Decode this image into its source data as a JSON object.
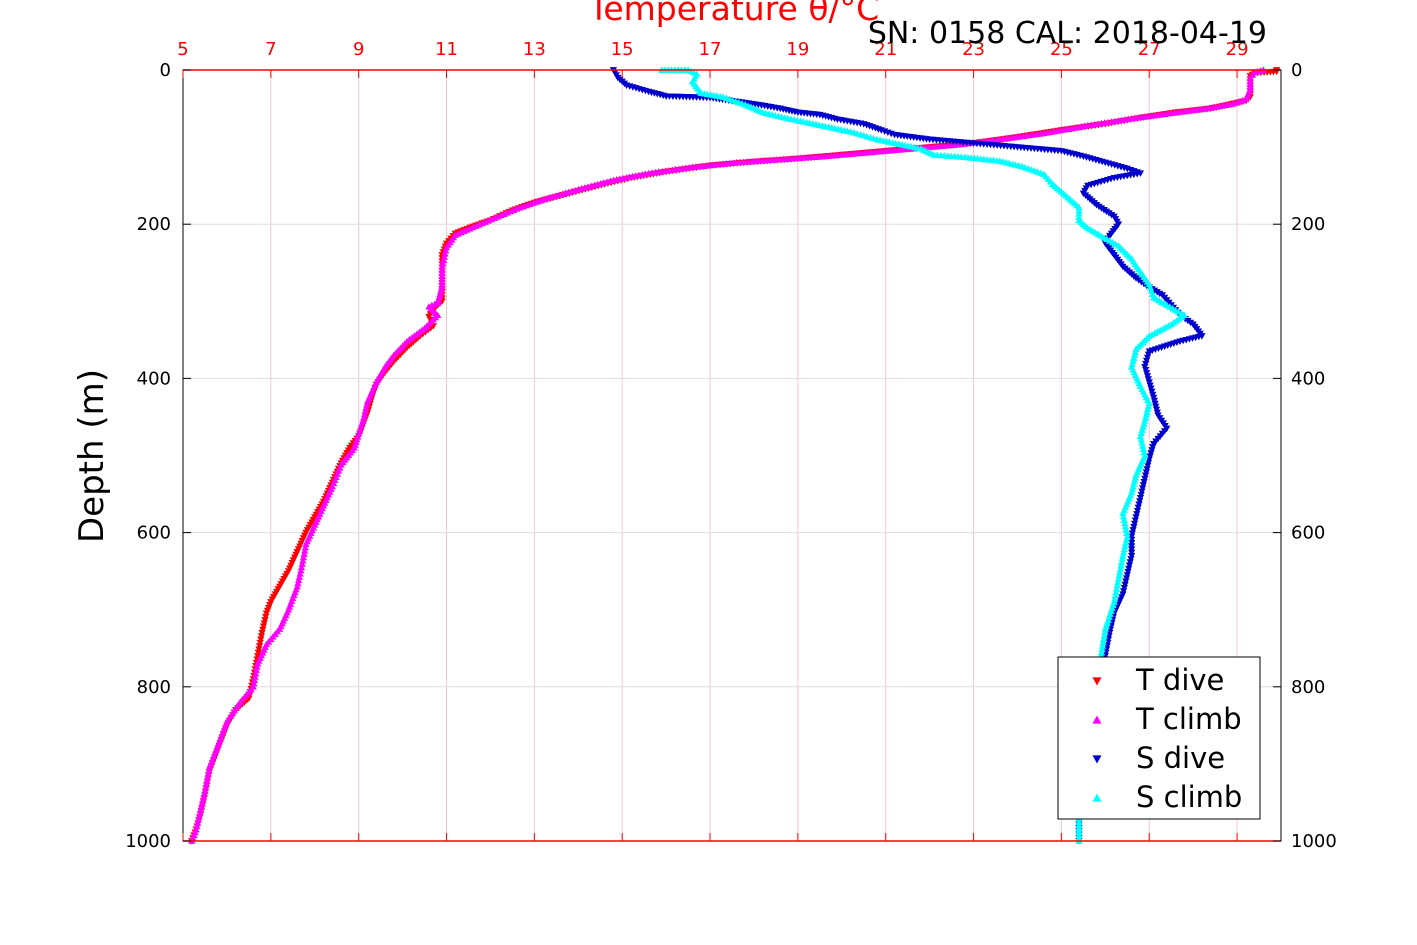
{
  "header": {
    "temperature_title": "Temperature θ/°C",
    "serial": "SN: 0158  CAL: 2018-04-19"
  },
  "chart_data": {
    "type": "scatter",
    "title": "Temperature θ/°C",
    "ylabel": "Depth (m)",
    "xlim": [
      5,
      30
    ],
    "ylim": [
      1000,
      0
    ],
    "x_ticks": [
      5,
      7,
      9,
      11,
      13,
      15,
      17,
      19,
      21,
      23,
      25,
      27,
      29
    ],
    "y_ticks": [
      0,
      200,
      400,
      600,
      800,
      1000
    ],
    "grid": true,
    "legend_position": "bottom-right",
    "colors": {
      "t_dive": "#ff0000",
      "t_climb": "#ff00ff",
      "s_dive": "#0000cc",
      "s_climb": "#00ffff",
      "axis": "#ff0000",
      "grid": "#e0e0e0"
    },
    "series": [
      {
        "name": "T dive",
        "marker": "triangle-down",
        "color": "#ff0000",
        "points": [
          [
            29.9,
            0
          ],
          [
            29.9,
            2
          ],
          [
            29.4,
            4
          ],
          [
            29.3,
            8
          ],
          [
            29.3,
            20
          ],
          [
            29.3,
            35
          ],
          [
            29.2,
            40
          ],
          [
            28.8,
            45
          ],
          [
            28.4,
            50
          ],
          [
            27.6,
            55
          ],
          [
            26.8,
            62
          ],
          [
            26.0,
            70
          ],
          [
            25.0,
            78
          ],
          [
            24.0,
            87
          ],
          [
            23.0,
            95
          ],
          [
            22.0,
            100
          ],
          [
            21.0,
            105
          ],
          [
            20.0,
            110
          ],
          [
            19.0,
            115
          ],
          [
            18.0,
            119
          ],
          [
            17.0,
            124
          ],
          [
            16.0,
            132
          ],
          [
            15.2,
            140
          ],
          [
            14.6,
            148
          ],
          [
            13.8,
            160
          ],
          [
            13.0,
            172
          ],
          [
            12.5,
            182
          ],
          [
            12.0,
            195
          ],
          [
            11.6,
            203
          ],
          [
            11.2,
            212
          ],
          [
            11.0,
            225
          ],
          [
            10.9,
            240
          ],
          [
            10.9,
            260
          ],
          [
            10.9,
            280
          ],
          [
            10.9,
            300
          ],
          [
            10.7,
            310
          ],
          [
            10.6,
            320
          ],
          [
            10.7,
            332
          ],
          [
            10.4,
            345
          ],
          [
            10.1,
            360
          ],
          [
            9.8,
            378
          ],
          [
            9.6,
            392
          ],
          [
            9.4,
            408
          ],
          [
            9.3,
            425
          ],
          [
            9.2,
            445
          ],
          [
            9.1,
            460
          ],
          [
            9.0,
            475
          ],
          [
            8.8,
            490
          ],
          [
            8.6,
            510
          ],
          [
            8.4,
            535
          ],
          [
            8.2,
            560
          ],
          [
            8.0,
            580
          ],
          [
            7.8,
            600
          ],
          [
            7.6,
            625
          ],
          [
            7.4,
            650
          ],
          [
            7.2,
            670
          ],
          [
            7.0,
            690
          ],
          [
            6.9,
            705
          ],
          [
            6.8,
            730
          ],
          [
            6.7,
            760
          ],
          [
            6.6,
            790
          ],
          [
            6.5,
            815
          ],
          [
            6.2,
            830
          ],
          [
            6.0,
            850
          ],
          [
            5.8,
            880
          ],
          [
            5.6,
            910
          ],
          [
            5.5,
            940
          ],
          [
            5.4,
            965
          ],
          [
            5.3,
            985
          ],
          [
            5.2,
            1000
          ]
        ]
      },
      {
        "name": "T climb",
        "marker": "triangle-up",
        "color": "#ff00ff",
        "points": [
          [
            29.6,
            0
          ],
          [
            29.4,
            3
          ],
          [
            29.3,
            10
          ],
          [
            29.3,
            25
          ],
          [
            29.2,
            38
          ],
          [
            28.9,
            44
          ],
          [
            28.3,
            50
          ],
          [
            27.5,
            56
          ],
          [
            26.6,
            63
          ],
          [
            25.6,
            72
          ],
          [
            24.6,
            82
          ],
          [
            23.6,
            90
          ],
          [
            22.6,
            97
          ],
          [
            21.6,
            102
          ],
          [
            20.6,
            107
          ],
          [
            19.6,
            112
          ],
          [
            18.6,
            116
          ],
          [
            17.6,
            120
          ],
          [
            16.6,
            126
          ],
          [
            15.6,
            134
          ],
          [
            14.8,
            143
          ],
          [
            14.0,
            155
          ],
          [
            13.2,
            168
          ],
          [
            12.6,
            180
          ],
          [
            12.1,
            192
          ],
          [
            11.6,
            204
          ],
          [
            11.2,
            214
          ],
          [
            11.0,
            230
          ],
          [
            10.9,
            255
          ],
          [
            10.9,
            280
          ],
          [
            10.8,
            302
          ],
          [
            10.6,
            307
          ],
          [
            10.8,
            318
          ],
          [
            10.5,
            335
          ],
          [
            10.1,
            352
          ],
          [
            9.8,
            370
          ],
          [
            9.6,
            385
          ],
          [
            9.4,
            405
          ],
          [
            9.2,
            430
          ],
          [
            9.1,
            455
          ],
          [
            9.0,
            472
          ],
          [
            8.9,
            490
          ],
          [
            8.6,
            512
          ],
          [
            8.4,
            540
          ],
          [
            8.2,
            565
          ],
          [
            8.0,
            590
          ],
          [
            7.8,
            615
          ],
          [
            7.7,
            645
          ],
          [
            7.6,
            670
          ],
          [
            7.4,
            700
          ],
          [
            7.2,
            725
          ],
          [
            6.9,
            745
          ],
          [
            6.7,
            770
          ],
          [
            6.6,
            800
          ],
          [
            6.3,
            820
          ],
          [
            6.0,
            845
          ],
          [
            5.8,
            875
          ],
          [
            5.6,
            905
          ],
          [
            5.5,
            935
          ],
          [
            5.4,
            960
          ],
          [
            5.3,
            985
          ],
          [
            5.2,
            1000
          ]
        ]
      },
      {
        "name": "S dive",
        "marker": "triangle-down",
        "color": "#0000cc",
        "points": [
          [
            14.8,
            0
          ],
          [
            14.9,
            10
          ],
          [
            15.1,
            20
          ],
          [
            15.6,
            28
          ],
          [
            16.0,
            34
          ],
          [
            17.0,
            36
          ],
          [
            17.5,
            40
          ],
          [
            18.1,
            45
          ],
          [
            18.6,
            50
          ],
          [
            19.0,
            55
          ],
          [
            19.5,
            58
          ],
          [
            19.9,
            64
          ],
          [
            20.5,
            70
          ],
          [
            20.9,
            78
          ],
          [
            21.2,
            84
          ],
          [
            22.0,
            90
          ],
          [
            23.0,
            95
          ],
          [
            24.0,
            100
          ],
          [
            25.0,
            105
          ],
          [
            25.5,
            112
          ],
          [
            26.0,
            120
          ],
          [
            26.5,
            128
          ],
          [
            26.8,
            134
          ],
          [
            26.2,
            140
          ],
          [
            25.6,
            150
          ],
          [
            25.5,
            160
          ],
          [
            25.8,
            175
          ],
          [
            26.2,
            190
          ],
          [
            26.3,
            200
          ],
          [
            26.1,
            215
          ],
          [
            26.0,
            225
          ],
          [
            26.2,
            240
          ],
          [
            26.4,
            255
          ],
          [
            26.7,
            270
          ],
          [
            27.0,
            282
          ],
          [
            27.3,
            292
          ],
          [
            27.5,
            305
          ],
          [
            27.7,
            318
          ],
          [
            28.0,
            330
          ],
          [
            28.2,
            345
          ],
          [
            27.7,
            352
          ],
          [
            27.0,
            365
          ],
          [
            26.9,
            385
          ],
          [
            27.0,
            405
          ],
          [
            27.1,
            425
          ],
          [
            27.2,
            448
          ],
          [
            27.4,
            465
          ],
          [
            27.1,
            485
          ],
          [
            27.0,
            505
          ],
          [
            26.9,
            530
          ],
          [
            26.8,
            555
          ],
          [
            26.7,
            580
          ],
          [
            26.6,
            605
          ],
          [
            26.6,
            630
          ],
          [
            26.5,
            655
          ],
          [
            26.4,
            680
          ],
          [
            26.2,
            705
          ],
          [
            26.1,
            730
          ],
          [
            26.0,
            760
          ],
          [
            25.9,
            790
          ],
          [
            25.8,
            820
          ],
          [
            25.7,
            850
          ],
          [
            25.6,
            880
          ],
          [
            25.5,
            910
          ],
          [
            25.5,
            940
          ],
          [
            25.4,
            970
          ],
          [
            25.4,
            1000
          ]
        ]
      },
      {
        "name": "S climb",
        "marker": "triangle-up",
        "color": "#00ffff",
        "points": [
          [
            15.9,
            0
          ],
          [
            16.5,
            0
          ],
          [
            16.7,
            5
          ],
          [
            16.6,
            15
          ],
          [
            16.8,
            30
          ],
          [
            17.3,
            35
          ],
          [
            17.8,
            45
          ],
          [
            18.2,
            55
          ],
          [
            18.7,
            62
          ],
          [
            19.2,
            68
          ],
          [
            19.7,
            74
          ],
          [
            20.2,
            80
          ],
          [
            20.8,
            90
          ],
          [
            21.3,
            96
          ],
          [
            21.8,
            102
          ],
          [
            22.1,
            110
          ],
          [
            22.8,
            113
          ],
          [
            23.6,
            118
          ],
          [
            24.1,
            125
          ],
          [
            24.6,
            135
          ],
          [
            24.8,
            148
          ],
          [
            25.0,
            158
          ],
          [
            25.2,
            168
          ],
          [
            25.4,
            178
          ],
          [
            25.4,
            195
          ],
          [
            25.6,
            205
          ],
          [
            25.9,
            215
          ],
          [
            26.3,
            228
          ],
          [
            26.6,
            245
          ],
          [
            26.8,
            262
          ],
          [
            27.0,
            278
          ],
          [
            27.1,
            295
          ],
          [
            27.4,
            305
          ],
          [
            27.8,
            318
          ],
          [
            27.5,
            330
          ],
          [
            27.0,
            345
          ],
          [
            26.7,
            362
          ],
          [
            26.6,
            385
          ],
          [
            26.8,
            410
          ],
          [
            27.0,
            432
          ],
          [
            26.9,
            455
          ],
          [
            26.8,
            475
          ],
          [
            26.9,
            500
          ],
          [
            26.7,
            525
          ],
          [
            26.6,
            548
          ],
          [
            26.4,
            575
          ],
          [
            26.5,
            605
          ],
          [
            26.4,
            630
          ],
          [
            26.3,
            660
          ],
          [
            26.2,
            690
          ],
          [
            26.0,
            725
          ],
          [
            25.9,
            760
          ],
          [
            25.8,
            795
          ],
          [
            25.7,
            825
          ],
          [
            25.6,
            855
          ],
          [
            25.5,
            885
          ],
          [
            25.5,
            915
          ],
          [
            25.4,
            945
          ],
          [
            25.4,
            975
          ],
          [
            25.4,
            1000
          ]
        ]
      }
    ]
  }
}
